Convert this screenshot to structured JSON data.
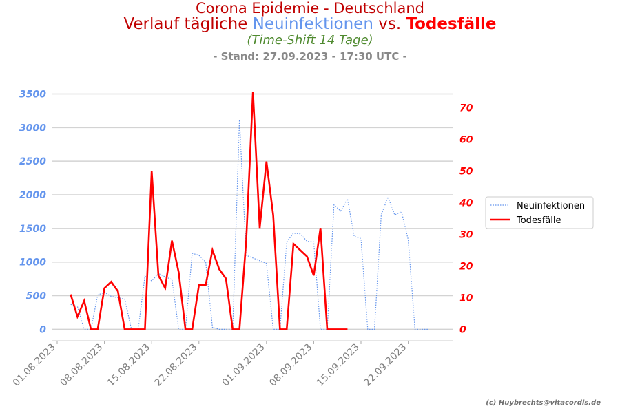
{
  "title": {
    "line1": "Corona Epidemie - Deutschland",
    "line2_part1": "Verlauf tägliche ",
    "line2_part2": "Neuinfektionen",
    "line2_part3": " vs. ",
    "line2_part4": "Todesfälle",
    "subtitle": "(Time-Shift 14 Tage)",
    "stand": "- Stand: 27.09.2023 - 17:30 UTC -"
  },
  "colors": {
    "title_dark_red": "#c00000",
    "new_infections": "#6495ed",
    "deaths": "#ff0000",
    "subtitle_green": "#4f8a2f",
    "stand_gray": "#888888",
    "grid": "#d3d3d3",
    "copyright": "#707070"
  },
  "copyright": "(c) Huybrechts@vitacordis.de",
  "chart_data": {
    "type": "line",
    "x_start_date": "2023-08-01",
    "x_ticks": [
      "01.08.2023",
      "08.08.2023",
      "15.08.2023",
      "22.08.2023",
      "01.09.2023",
      "08.09.2023",
      "15.09.2023",
      "22.09.2023"
    ],
    "y_left_ticks": [
      "0",
      "500",
      "1000",
      "1500",
      "2000",
      "2500",
      "3000",
      "3500"
    ],
    "y_right_ticks": [
      "0",
      "10",
      "20",
      "30",
      "40",
      "50",
      "60",
      "70"
    ],
    "ylim_left": [
      -170,
      3720
    ],
    "ylim_right": [
      -3.6,
      79.0
    ],
    "grid": true,
    "legend_position": "right",
    "series": [
      {
        "name": "Neuinfektionen",
        "axis": "left",
        "style": "dotted",
        "color": "#6495ed",
        "points": [
          [
            "2023-08-03",
            370
          ],
          [
            "2023-08-04",
            340
          ],
          [
            "2023-08-05",
            0
          ],
          [
            "2023-08-06",
            0
          ],
          [
            "2023-08-07",
            510
          ],
          [
            "2023-08-08",
            550
          ],
          [
            "2023-08-09",
            490
          ],
          [
            "2023-08-10",
            470
          ],
          [
            "2023-08-11",
            450
          ],
          [
            "2023-08-12",
            0
          ],
          [
            "2023-08-13",
            0
          ],
          [
            "2023-08-14",
            790
          ],
          [
            "2023-08-15",
            720
          ],
          [
            "2023-08-16",
            830
          ],
          [
            "2023-08-17",
            780
          ],
          [
            "2023-08-18",
            740
          ],
          [
            "2023-08-19",
            0
          ],
          [
            "2023-08-20",
            0
          ],
          [
            "2023-08-21",
            1130
          ],
          [
            "2023-08-22",
            1100
          ],
          [
            "2023-08-23",
            1000
          ],
          [
            "2023-08-24",
            30
          ],
          [
            "2023-08-25",
            0
          ],
          [
            "2023-08-26",
            0
          ],
          [
            "2023-08-27",
            0
          ],
          [
            "2023-08-28",
            3120
          ],
          [
            "2023-08-29",
            1100
          ],
          [
            "2023-08-30",
            1060
          ],
          [
            "2023-08-31",
            1020
          ],
          [
            "2023-09-01",
            980
          ],
          [
            "2023-09-02",
            0
          ],
          [
            "2023-09-03",
            0
          ],
          [
            "2023-09-04",
            1300
          ],
          [
            "2023-09-05",
            1430
          ],
          [
            "2023-09-06",
            1420
          ],
          [
            "2023-09-07",
            1310
          ],
          [
            "2023-09-08",
            1300
          ],
          [
            "2023-09-09",
            0
          ],
          [
            "2023-09-10",
            0
          ],
          [
            "2023-09-11",
            1850
          ],
          [
            "2023-09-12",
            1760
          ],
          [
            "2023-09-13",
            1940
          ],
          [
            "2023-09-14",
            1380
          ],
          [
            "2023-09-15",
            1350
          ],
          [
            "2023-09-16",
            0
          ],
          [
            "2023-09-17",
            0
          ],
          [
            "2023-09-18",
            1700
          ],
          [
            "2023-09-19",
            1970
          ],
          [
            "2023-09-20",
            1700
          ],
          [
            "2023-09-21",
            1750
          ],
          [
            "2023-09-22",
            1330
          ],
          [
            "2023-09-23",
            0
          ],
          [
            "2023-09-24",
            0
          ],
          [
            "2023-09-25",
            0
          ]
        ]
      },
      {
        "name": "Todesfälle",
        "axis": "right",
        "style": "solid",
        "color": "#ff0000",
        "points": [
          [
            "2023-08-03",
            11
          ],
          [
            "2023-08-04",
            4
          ],
          [
            "2023-08-05",
            9
          ],
          [
            "2023-08-06",
            0
          ],
          [
            "2023-08-07",
            0
          ],
          [
            "2023-08-08",
            13
          ],
          [
            "2023-08-09",
            15
          ],
          [
            "2023-08-10",
            12
          ],
          [
            "2023-08-11",
            0
          ],
          [
            "2023-08-12",
            0
          ],
          [
            "2023-08-13",
            0
          ],
          [
            "2023-08-14",
            0
          ],
          [
            "2023-08-15",
            50
          ],
          [
            "2023-08-16",
            17
          ],
          [
            "2023-08-17",
            13
          ],
          [
            "2023-08-18",
            28
          ],
          [
            "2023-08-19",
            18
          ],
          [
            "2023-08-20",
            0
          ],
          [
            "2023-08-21",
            0
          ],
          [
            "2023-08-22",
            14
          ],
          [
            "2023-08-23",
            14
          ],
          [
            "2023-08-24",
            25
          ],
          [
            "2023-08-25",
            19
          ],
          [
            "2023-08-26",
            16
          ],
          [
            "2023-08-27",
            0
          ],
          [
            "2023-08-28",
            0
          ],
          [
            "2023-08-29",
            28
          ],
          [
            "2023-08-30",
            75
          ],
          [
            "2023-08-31",
            32
          ],
          [
            "2023-09-01",
            53
          ],
          [
            "2023-09-02",
            36
          ],
          [
            "2023-09-03",
            0
          ],
          [
            "2023-09-04",
            0
          ],
          [
            "2023-09-05",
            27
          ],
          [
            "2023-09-06",
            25
          ],
          [
            "2023-09-07",
            23
          ],
          [
            "2023-09-08",
            17
          ],
          [
            "2023-09-09",
            32
          ],
          [
            "2023-09-10",
            0
          ],
          [
            "2023-09-11",
            0
          ],
          [
            "2023-09-12",
            0
          ],
          [
            "2023-09-13",
            0
          ]
        ]
      }
    ]
  }
}
